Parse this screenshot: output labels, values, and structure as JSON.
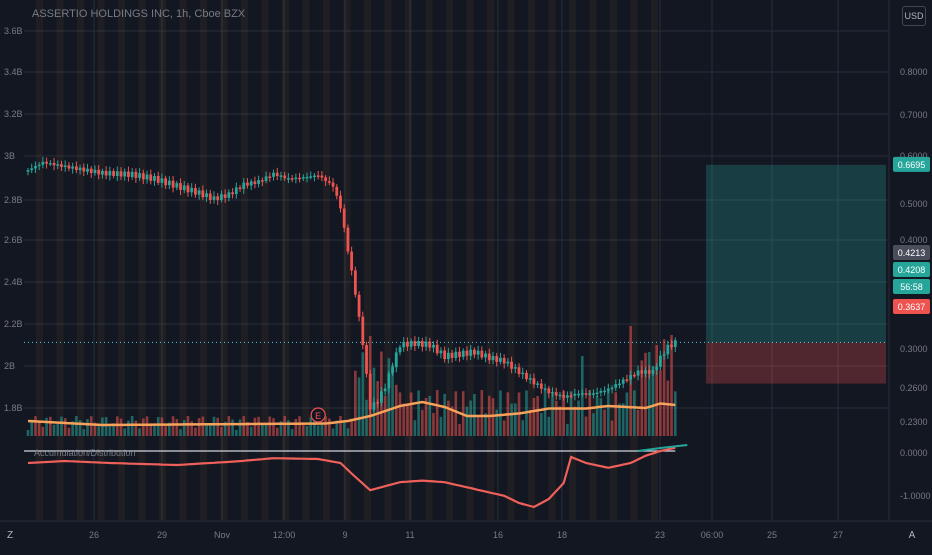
{
  "header": {
    "title": "ASSERTIO HOLDINGS INC, 1h, Cboe BZX",
    "currency": "USD"
  },
  "indicator_label": "Accumulation/Distribution",
  "colors": {
    "background": "#131722",
    "up": "#26a69a",
    "down": "#ef5350",
    "ma": "#f7a25a",
    "ad": "#f0605a",
    "grid": "#2a2e39"
  },
  "left_axis": [
    "3.6B",
    "3.4B",
    "3.2B",
    "3B",
    "2.8B",
    "2.6B",
    "2.4B",
    "2.2B",
    "2B",
    "1.8B"
  ],
  "right_axis": [
    "0.8000",
    "0.7000",
    "0.6000",
    "0.5000",
    "0.4000",
    "0.3000",
    "0.2600",
    "0.2300",
    "0.0000",
    "-1.0000"
  ],
  "time_axis": [
    "26",
    "29",
    "Nov",
    "12:00",
    "9",
    "11",
    "16",
    "18",
    "23",
    "06:00",
    "25",
    "27"
  ],
  "price_badges": {
    "target": "0.6695",
    "last": "0.4213",
    "current": "0.4208",
    "countdown": "56:58",
    "stop": "0.3637"
  },
  "bottom_icons": {
    "left": "Z",
    "right": "A"
  },
  "markers": {
    "earnings": "E"
  },
  "chart_data": {
    "type": "candlestick",
    "title": "ASSERTIO HOLDINGS INC, 1h, Cboe BZX",
    "price_ylim": [
      0.215,
      0.83
    ],
    "x_labels": [
      "26",
      "29",
      "Nov",
      "12:00",
      "9",
      "11",
      "16",
      "18",
      "23",
      "06:00",
      "25",
      "27"
    ],
    "close_path": [
      {
        "i": 0,
        "p": 0.662
      },
      {
        "i": 4,
        "p": 0.673
      },
      {
        "i": 10,
        "p": 0.667
      },
      {
        "i": 20,
        "p": 0.658
      },
      {
        "i": 28,
        "p": 0.656
      },
      {
        "i": 34,
        "p": 0.65
      },
      {
        "i": 40,
        "p": 0.64
      },
      {
        "i": 46,
        "p": 0.63
      },
      {
        "i": 50,
        "p": 0.622
      },
      {
        "i": 54,
        "p": 0.628
      },
      {
        "i": 58,
        "p": 0.642
      },
      {
        "i": 62,
        "p": 0.646
      },
      {
        "i": 66,
        "p": 0.657
      },
      {
        "i": 70,
        "p": 0.65
      },
      {
        "i": 74,
        "p": 0.652
      },
      {
        "i": 78,
        "p": 0.655
      },
      {
        "i": 82,
        "p": 0.64
      },
      {
        "i": 84,
        "p": 0.61
      },
      {
        "i": 86,
        "p": 0.55
      },
      {
        "i": 88,
        "p": 0.49
      },
      {
        "i": 90,
        "p": 0.42
      },
      {
        "i": 92,
        "p": 0.33
      },
      {
        "i": 94,
        "p": 0.34
      },
      {
        "i": 96,
        "p": 0.36
      },
      {
        "i": 98,
        "p": 0.39
      },
      {
        "i": 100,
        "p": 0.418
      },
      {
        "i": 104,
        "p": 0.42
      },
      {
        "i": 108,
        "p": 0.418
      },
      {
        "i": 112,
        "p": 0.402
      },
      {
        "i": 116,
        "p": 0.405
      },
      {
        "i": 120,
        "p": 0.408
      },
      {
        "i": 124,
        "p": 0.4
      },
      {
        "i": 128,
        "p": 0.395
      },
      {
        "i": 132,
        "p": 0.38
      },
      {
        "i": 136,
        "p": 0.365
      },
      {
        "i": 140,
        "p": 0.352
      },
      {
        "i": 144,
        "p": 0.345
      },
      {
        "i": 148,
        "p": 0.35
      },
      {
        "i": 152,
        "p": 0.35
      },
      {
        "i": 156,
        "p": 0.356
      },
      {
        "i": 160,
        "p": 0.368
      },
      {
        "i": 164,
        "p": 0.38
      },
      {
        "i": 168,
        "p": 0.38
      },
      {
        "i": 170,
        "p": 0.4
      },
      {
        "i": 172,
        "p": 0.415
      },
      {
        "i": 174,
        "p": 0.421
      }
    ],
    "volume_ma": [
      {
        "i": 0,
        "v": 0.3
      },
      {
        "i": 20,
        "v": 0.22
      },
      {
        "i": 60,
        "v": 0.24
      },
      {
        "i": 80,
        "v": 0.25
      },
      {
        "i": 86,
        "v": 0.3
      },
      {
        "i": 92,
        "v": 0.4
      },
      {
        "i": 100,
        "v": 0.6
      },
      {
        "i": 106,
        "v": 0.68
      },
      {
        "i": 112,
        "v": 0.58
      },
      {
        "i": 118,
        "v": 0.4
      },
      {
        "i": 124,
        "v": 0.4
      },
      {
        "i": 132,
        "v": 0.45
      },
      {
        "i": 140,
        "v": 0.55
      },
      {
        "i": 150,
        "v": 0.55
      },
      {
        "i": 156,
        "v": 0.6
      },
      {
        "i": 166,
        "v": 0.56
      },
      {
        "i": 170,
        "v": 0.65
      },
      {
        "i": 174,
        "v": 0.62
      }
    ],
    "ad_line": [
      {
        "i": 0,
        "a": 0.3
      },
      {
        "i": 10,
        "a": 0.25
      },
      {
        "i": 22,
        "a": 0.3
      },
      {
        "i": 40,
        "a": 0.35
      },
      {
        "i": 56,
        "a": 0.26
      },
      {
        "i": 66,
        "a": 0.18
      },
      {
        "i": 78,
        "a": 0.2
      },
      {
        "i": 84,
        "a": 0.3
      },
      {
        "i": 88,
        "a": 0.65
      },
      {
        "i": 92,
        "a": 0.98
      },
      {
        "i": 96,
        "a": 0.88
      },
      {
        "i": 100,
        "a": 0.78
      },
      {
        "i": 106,
        "a": 0.74
      },
      {
        "i": 112,
        "a": 0.78
      },
      {
        "i": 120,
        "a": 0.95
      },
      {
        "i": 128,
        "a": 1.12
      },
      {
        "i": 132,
        "a": 1.3
      },
      {
        "i": 136,
        "a": 1.4
      },
      {
        "i": 140,
        "a": 1.2
      },
      {
        "i": 144,
        "a": 0.8
      },
      {
        "i": 146,
        "a": 0.15
      },
      {
        "i": 150,
        "a": 0.3
      },
      {
        "i": 156,
        "a": 0.42
      },
      {
        "i": 162,
        "a": 0.3
      },
      {
        "i": 166,
        "a": 0.12
      },
      {
        "i": 170,
        "a": 0.0
      },
      {
        "i": 174,
        "a": -0.08
      }
    ],
    "position": {
      "entry": 0.4213,
      "target": 0.6695,
      "stop": 0.3637
    }
  }
}
